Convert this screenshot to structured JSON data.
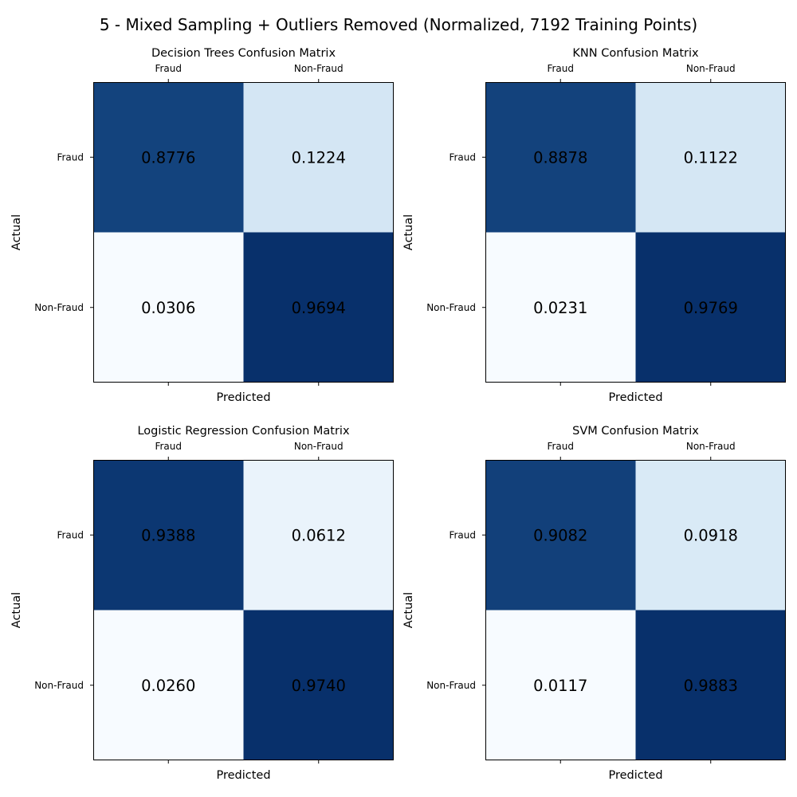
{
  "figure": {
    "suptitle": "5 - Mixed Sampling + Outliers Removed (Normalized, 7192 Training Points)"
  },
  "colors": {
    "cmap_low": "#f7fbff",
    "cmap_high": "#08306b",
    "text": "#000000"
  },
  "chart_data": [
    {
      "type": "heatmap",
      "title": "Decision Trees Confusion Matrix",
      "xlabel": "Predicted",
      "ylabel": "Actual",
      "x_categories": [
        "Fraud",
        "Non-Fraud"
      ],
      "y_categories": [
        "Fraud",
        "Non-Fraud"
      ],
      "values": [
        [
          0.8776,
          0.1224
        ],
        [
          0.0306,
          0.9694
        ]
      ],
      "labels": [
        [
          "0.8776",
          "0.1224"
        ],
        [
          "0.0306",
          "0.9694"
        ]
      ],
      "colormap": "Blues",
      "x_ticks_position": "top"
    },
    {
      "type": "heatmap",
      "title": "KNN Confusion Matrix",
      "xlabel": "Predicted",
      "ylabel": "Actual",
      "x_categories": [
        "Fraud",
        "Non-Fraud"
      ],
      "y_categories": [
        "Fraud",
        "Non-Fraud"
      ],
      "values": [
        [
          0.8878,
          0.1122
        ],
        [
          0.0231,
          0.9769
        ]
      ],
      "labels": [
        [
          "0.8878",
          "0.1122"
        ],
        [
          "0.0231",
          "0.9769"
        ]
      ],
      "colormap": "Blues",
      "x_ticks_position": "top"
    },
    {
      "type": "heatmap",
      "title": "Logistic Regression Confusion Matrix",
      "xlabel": "Predicted",
      "ylabel": "Actual",
      "x_categories": [
        "Fraud",
        "Non-Fraud"
      ],
      "y_categories": [
        "Fraud",
        "Non-Fraud"
      ],
      "values": [
        [
          0.9388,
          0.0612
        ],
        [
          0.026,
          0.974
        ]
      ],
      "labels": [
        [
          "0.9388",
          "0.0612"
        ],
        [
          "0.0260",
          "0.9740"
        ]
      ],
      "colormap": "Blues",
      "x_ticks_position": "top"
    },
    {
      "type": "heatmap",
      "title": "SVM Confusion Matrix",
      "xlabel": "Predicted",
      "ylabel": "Actual",
      "x_categories": [
        "Fraud",
        "Non-Fraud"
      ],
      "y_categories": [
        "Fraud",
        "Non-Fraud"
      ],
      "values": [
        [
          0.9082,
          0.0918
        ],
        [
          0.0117,
          0.9883
        ]
      ],
      "labels": [
        [
          "0.9082",
          "0.0918"
        ],
        [
          "0.0117",
          "0.9883"
        ]
      ],
      "colormap": "Blues",
      "x_ticks_position": "top"
    }
  ]
}
